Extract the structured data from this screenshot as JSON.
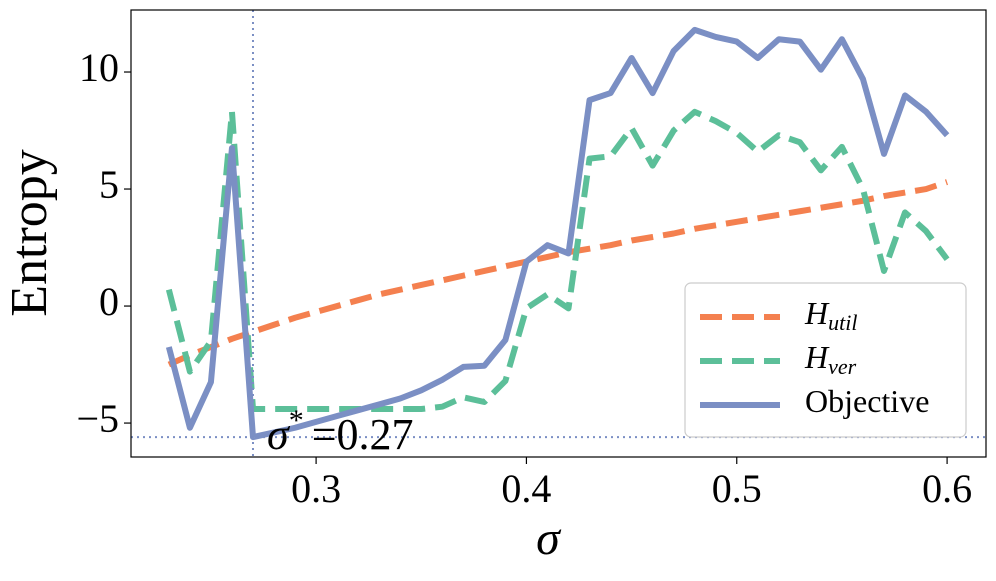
{
  "chart_data": {
    "type": "line",
    "x": [
      0.23,
      0.24,
      0.25,
      0.26,
      0.27,
      0.28,
      0.29,
      0.3,
      0.31,
      0.32,
      0.33,
      0.34,
      0.35,
      0.36,
      0.37,
      0.38,
      0.39,
      0.4,
      0.41,
      0.42,
      0.43,
      0.44,
      0.45,
      0.46,
      0.47,
      0.48,
      0.49,
      0.5,
      0.51,
      0.52,
      0.53,
      0.54,
      0.55,
      0.56,
      0.57,
      0.58,
      0.59,
      0.6
    ],
    "series": [
      {
        "name": "H",
        "subscript": "util",
        "color": "#f4804f",
        "dash": "dashed",
        "values": [
          -2.5,
          -2.1,
          -1.75,
          -1.4,
          -1.1,
          -0.8,
          -0.5,
          -0.25,
          0.0,
          0.25,
          0.5,
          0.7,
          0.9,
          1.1,
          1.3,
          1.5,
          1.7,
          1.9,
          2.1,
          2.3,
          2.45,
          2.6,
          2.8,
          2.95,
          3.1,
          3.3,
          3.45,
          3.6,
          3.75,
          3.9,
          4.05,
          4.2,
          4.35,
          4.5,
          4.7,
          4.85,
          5.0,
          5.3
        ]
      },
      {
        "name": "H",
        "subscript": "ver",
        "color": "#5cbf99",
        "dash": "dashed",
        "values": [
          0.7,
          -2.8,
          -1.5,
          8.3,
          -4.4,
          -4.4,
          -4.4,
          -4.4,
          -4.4,
          -4.4,
          -4.4,
          -4.4,
          -4.4,
          -4.3,
          -3.9,
          -4.1,
          -3.2,
          -0.1,
          0.5,
          -0.1,
          6.3,
          6.4,
          7.6,
          6.0,
          7.5,
          8.3,
          7.9,
          7.4,
          6.6,
          7.3,
          7.0,
          5.8,
          6.8,
          5.0,
          1.5,
          4.0,
          3.2,
          2.0
        ]
      },
      {
        "name": "Objective",
        "color": "#7b8fc4",
        "dash": "solid",
        "values": [
          -1.75,
          -5.2,
          -3.25,
          6.75,
          -5.6,
          -5.4,
          -5.2,
          -4.95,
          -4.7,
          -4.45,
          -4.2,
          -3.95,
          -3.6,
          -3.15,
          -2.6,
          -2.55,
          -1.45,
          1.9,
          2.6,
          2.25,
          8.8,
          9.1,
          10.6,
          9.1,
          10.9,
          11.8,
          11.5,
          11.3,
          10.6,
          11.4,
          11.3,
          10.1,
          11.4,
          9.7,
          6.5,
          9.0,
          8.3,
          7.3
        ]
      }
    ],
    "xlabel": "σ",
    "ylabel": "Entropy",
    "xlim": [
      0.212,
      0.6185
    ],
    "ylim": [
      -6.45,
      12.65
    ],
    "xticks": [
      0.3,
      0.4,
      0.5,
      0.6
    ],
    "yticks": [
      {
        "value": -5,
        "label": "−5"
      },
      0,
      5,
      10
    ],
    "vline": 0.27,
    "hline": -5.6,
    "ref_color": "#7b8fc4",
    "annotation": {
      "symbol": "σ",
      "sup": "*",
      "text": "=0.27"
    },
    "legend": "lower right",
    "grid": false
  }
}
